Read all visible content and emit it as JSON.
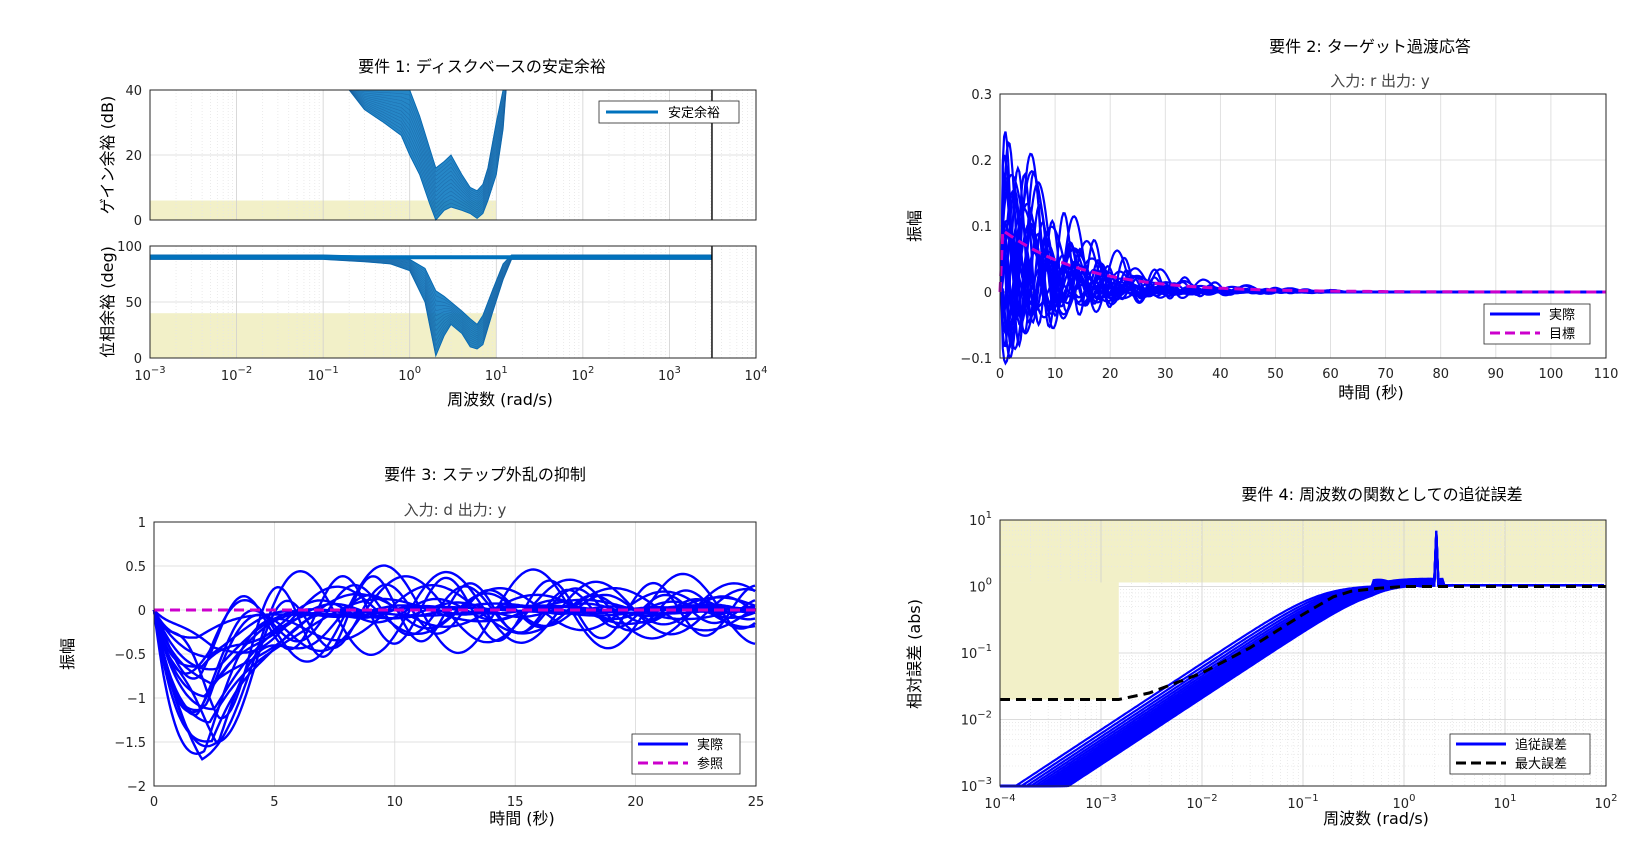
{
  "chart_data": [
    {
      "id": "p1",
      "type": "line",
      "title": "要件 1: ディスクベースの安定余裕",
      "xlabel": "周波数 (rad/s)",
      "xscale": "log",
      "xlim": [
        0.001,
        10000
      ],
      "xticks": [
        "10^{-3}",
        "10^{-2}",
        "10^{-1}",
        "10^{0}",
        "10^{1}",
        "10^{2}",
        "10^{3}",
        "10^{4}"
      ],
      "grid": true,
      "marker_x": 3100,
      "legend": {
        "entries": [
          "安定余裕"
        ],
        "position": "top-right"
      },
      "colors": {
        "series": "#0072bd",
        "bound": "#f2f0c8"
      },
      "subplots": [
        {
          "id": "gain",
          "ylabel": "ゲイン余裕 (dB)",
          "ylim": [
            0,
            40
          ],
          "yticks": [
            "0",
            "20",
            "40"
          ],
          "bound": {
            "x": [
              0.001,
              10
            ],
            "y": [
              0,
              6
            ]
          },
          "envelope": [
            [
              0.1,
              40,
              40
            ],
            [
              0.2,
              40,
              40
            ],
            [
              0.3,
              34,
              40
            ],
            [
              0.5,
              30,
              40
            ],
            [
              0.8,
              26,
              40
            ],
            [
              1.0,
              20,
              40
            ],
            [
              1.3,
              14,
              32
            ],
            [
              1.7,
              5,
              22
            ],
            [
              2.0,
              0,
              16
            ],
            [
              2.5,
              3,
              18
            ],
            [
              3.0,
              4,
              20
            ],
            [
              4.0,
              3,
              14
            ],
            [
              5.0,
              2,
              10
            ],
            [
              6.0,
              0.5,
              9
            ],
            [
              7.0,
              2,
              11
            ],
            [
              8.0,
              6,
              16
            ],
            [
              10,
              14,
              30
            ],
            [
              12,
              28,
              40
            ],
            [
              13,
              40,
              40
            ]
          ]
        },
        {
          "id": "phase",
          "ylabel": "位相余裕 (deg)",
          "ylim": [
            0,
            100
          ],
          "yticks": [
            "0",
            "50",
            "100"
          ],
          "bound": {
            "x": [
              0.001,
              10
            ],
            "y": [
              0,
              40
            ]
          },
          "envelope": [
            [
              0.001,
              88,
              92
            ],
            [
              0.1,
              88,
              92
            ],
            [
              0.3,
              86,
              91
            ],
            [
              0.6,
              84,
              91
            ],
            [
              1.0,
              78,
              88
            ],
            [
              1.5,
              50,
              80
            ],
            [
              2.0,
              2,
              60
            ],
            [
              2.5,
              20,
              55
            ],
            [
              3.0,
              30,
              50
            ],
            [
              4.0,
              22,
              42
            ],
            [
              5.0,
              10,
              35
            ],
            [
              6.0,
              8,
              30
            ],
            [
              7.0,
              12,
              38
            ],
            [
              9.0,
              40,
              60
            ],
            [
              12,
              70,
              84
            ],
            [
              15,
              88,
              92
            ],
            [
              3100,
              88,
              92
            ]
          ]
        }
      ]
    },
    {
      "id": "p2",
      "type": "line",
      "title": "要件 2: ターゲット過渡応答",
      "subtitle": "入力: r  出力: y",
      "xlabel": "時間 (秒)",
      "ylabel": "振幅",
      "xlim": [
        0,
        110
      ],
      "ylim": [
        -0.1,
        0.3
      ],
      "xticks": [
        "0",
        "10",
        "20",
        "30",
        "40",
        "50",
        "60",
        "70",
        "80",
        "90",
        "100",
        "110"
      ],
      "yticks": [
        "-0.1",
        "0",
        "0.1",
        "0.2",
        "0.3"
      ],
      "grid": true,
      "legend": {
        "entries": [
          "実際",
          "目標"
        ],
        "position": "bottom-right"
      },
      "colors": {
        "actual": "#0000ff",
        "target": "#cc00cc"
      }
    },
    {
      "id": "p3",
      "type": "line",
      "title": "要件 3: ステップ外乱の抑制",
      "subtitle": "入力: d  出力: y",
      "xlabel": "時間 (秒)",
      "ylabel": "振幅",
      "xlim": [
        0,
        25
      ],
      "ylim": [
        -2,
        1
      ],
      "xticks": [
        "0",
        "5",
        "10",
        "15",
        "20",
        "25"
      ],
      "yticks": [
        "-2",
        "-1.5",
        "-1",
        "-0.5",
        "0",
        "0.5",
        "1"
      ],
      "grid": true,
      "legend": {
        "entries": [
          "実際",
          "参照"
        ],
        "position": "bottom-right"
      },
      "colors": {
        "actual": "#0000ff",
        "reference": "#cc00cc"
      }
    },
    {
      "id": "p4",
      "type": "line",
      "title": "要件 4: 周波数の関数としての追従誤差",
      "xlabel": "周波数 (rad/s)",
      "ylabel": "相対誤差 (abs)",
      "xscale": "log",
      "yscale": "log",
      "xlim": [
        0.0001,
        100
      ],
      "ylim": [
        0.001,
        10
      ],
      "xticks": [
        "10^{-4}",
        "10^{-3}",
        "10^{-2}",
        "10^{-1}",
        "10^{0}",
        "10^{1}",
        "10^{2}"
      ],
      "yticks": [
        "10^{-3}",
        "10^{-2}",
        "10^{-1}",
        "10^{0}",
        "10^{1}"
      ],
      "grid": true,
      "legend": {
        "entries": [
          "追従誤差",
          "最大誤差"
        ],
        "position": "bottom-right"
      },
      "colors": {
        "error": "#0000ff",
        "max": "#000000",
        "bound": "#f2f0c8"
      },
      "max_error": [
        [
          0.0001,
          0.02
        ],
        [
          0.0015,
          0.02
        ],
        [
          0.003,
          0.025
        ],
        [
          0.01,
          0.05
        ],
        [
          0.03,
          0.12
        ],
        [
          0.1,
          0.38
        ],
        [
          0.2,
          0.7
        ],
        [
          0.3,
          0.85
        ],
        [
          0.6,
          0.95
        ],
        [
          1,
          1
        ],
        [
          100,
          1
        ]
      ]
    }
  ]
}
